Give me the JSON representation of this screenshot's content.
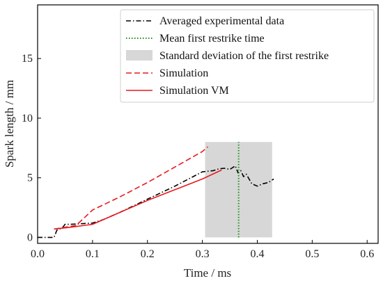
{
  "chart_data": {
    "type": "line",
    "xlabel": "Time / ms",
    "ylabel": "Spark length / mm",
    "xlim": [
      0.0,
      0.62
    ],
    "ylim": [
      -0.5,
      19.5
    ],
    "xticks": [
      0.0,
      0.1,
      0.2,
      0.3,
      0.4,
      0.5,
      0.6
    ],
    "yticks": [
      0,
      5,
      10,
      15
    ],
    "xtick_labels": [
      "0.0",
      "0.1",
      "0.2",
      "0.3",
      "0.4",
      "0.5",
      "0.6"
    ],
    "ytick_labels": [
      "0",
      "5",
      "10",
      "15"
    ],
    "grid": false,
    "legend_position": "top-right",
    "series": [
      {
        "name": "Averaged experimental data",
        "style": "dashdot",
        "color": "#000000",
        "x": [
          0.0,
          0.03,
          0.035,
          0.045,
          0.05,
          0.06,
          0.08,
          0.1,
          0.12,
          0.15,
          0.2,
          0.25,
          0.3,
          0.32,
          0.33,
          0.34,
          0.35,
          0.36,
          0.365,
          0.37,
          0.375,
          0.38,
          0.39,
          0.4,
          0.41,
          0.42,
          0.43
        ],
        "y": [
          0.0,
          0.0,
          0.6,
          0.8,
          1.1,
          1.1,
          1.15,
          1.2,
          1.5,
          2.1,
          3.2,
          4.3,
          5.5,
          5.6,
          5.75,
          5.8,
          5.7,
          6.0,
          5.4,
          5.6,
          5.1,
          5.3,
          4.5,
          4.3,
          4.5,
          4.6,
          4.9
        ]
      },
      {
        "name": "Mean first restrike time",
        "style": "dotted",
        "color": "#1a8a1a",
        "x": [
          0.366,
          0.366
        ],
        "y": [
          0.0,
          8.0
        ]
      },
      {
        "name": "Simulation",
        "style": "dashed",
        "color": "#e8191e",
        "x": [
          0.03,
          0.07,
          0.1,
          0.15,
          0.2,
          0.25,
          0.3,
          0.31
        ],
        "y": [
          0.7,
          1.0,
          2.3,
          3.4,
          4.6,
          5.9,
          7.2,
          7.6
        ]
      },
      {
        "name": "Simulation VM",
        "style": "solid",
        "color": "#e8191e",
        "x": [
          0.03,
          0.06,
          0.1,
          0.15,
          0.2,
          0.25,
          0.3,
          0.335
        ],
        "y": [
          0.7,
          0.85,
          1.1,
          2.1,
          3.1,
          4.0,
          4.9,
          5.65
        ]
      }
    ],
    "bands": [
      {
        "name": "Standard deviation of the first restrike",
        "color": "#d7d7d7",
        "x0": 0.305,
        "x1": 0.427,
        "y0": 0.0,
        "y1": 8.0
      }
    ]
  }
}
